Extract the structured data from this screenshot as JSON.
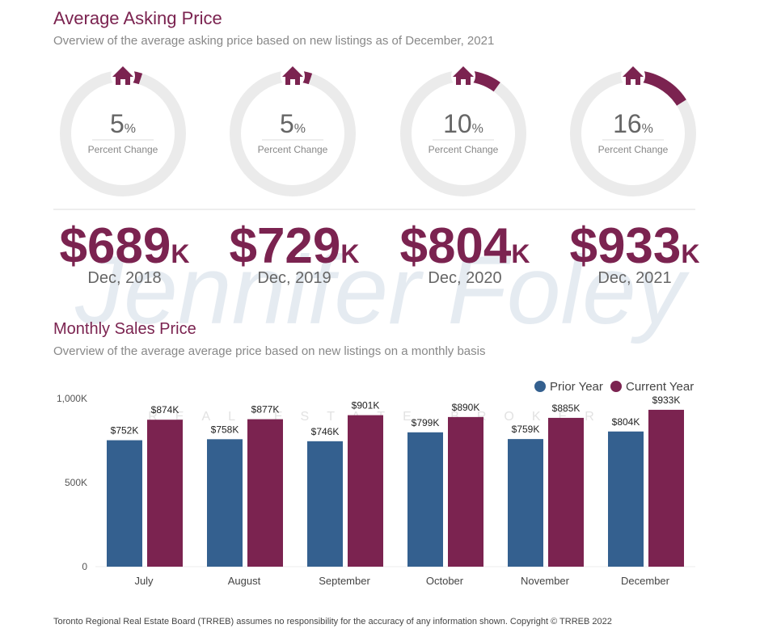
{
  "header": {
    "title": "Average Asking Price",
    "subtitle": "Overview of the average asking price based on new listings as of December, 2021"
  },
  "gauges": [
    {
      "value": 5,
      "unit": "%",
      "label": "Percent Change"
    },
    {
      "value": 5,
      "unit": "%",
      "label": "Percent Change"
    },
    {
      "value": 10,
      "unit": "%",
      "label": "Percent Change"
    },
    {
      "value": 16,
      "unit": "%",
      "label": "Percent Change"
    }
  ],
  "prices": [
    {
      "amount": "$689",
      "suffix": "K",
      "date": "Dec, 2018"
    },
    {
      "amount": "$729",
      "suffix": "K",
      "date": "Dec, 2019"
    },
    {
      "amount": "$804",
      "suffix": "K",
      "date": "Dec, 2020"
    },
    {
      "amount": "$933",
      "suffix": "K",
      "date": "Dec, 2021"
    }
  ],
  "watermark": {
    "name": "Jennifer Foley",
    "tagline": "REAL ESTATE BROKER"
  },
  "chart_data": {
    "type": "bar",
    "title": "Monthly Sales Price",
    "subtitle": "Overview of the average average price based on new listings on a monthly basis",
    "categories": [
      "July",
      "August",
      "September",
      "October",
      "November",
      "December"
    ],
    "series": [
      {
        "name": "Prior Year",
        "color": "#34608f",
        "values": [
          752000,
          758000,
          746000,
          799000,
          759000,
          804000
        ],
        "value_labels": [
          "$752K",
          "$758K",
          "$746K",
          "$799K",
          "$759K",
          "$804K"
        ]
      },
      {
        "name": "Current Year",
        "color": "#7b2350",
        "values": [
          874000,
          877000,
          901000,
          890000,
          885000,
          933000
        ],
        "value_labels": [
          "$874K",
          "$877K",
          "$901K",
          "$890K",
          "$885K",
          "$933K"
        ]
      }
    ],
    "ylim": [
      0,
      1000000
    ],
    "yticks": [
      0,
      {
        "value": 500000,
        "label": "500K"
      },
      {
        "value": 1000000,
        "label": "1,000K"
      }
    ],
    "grid": false,
    "legend": "top-right"
  },
  "footer": "Toronto Regional Real Estate Board (TRREB) assumes no responsibility for the accuracy of any information shown. Copyright © TRREB 2022"
}
